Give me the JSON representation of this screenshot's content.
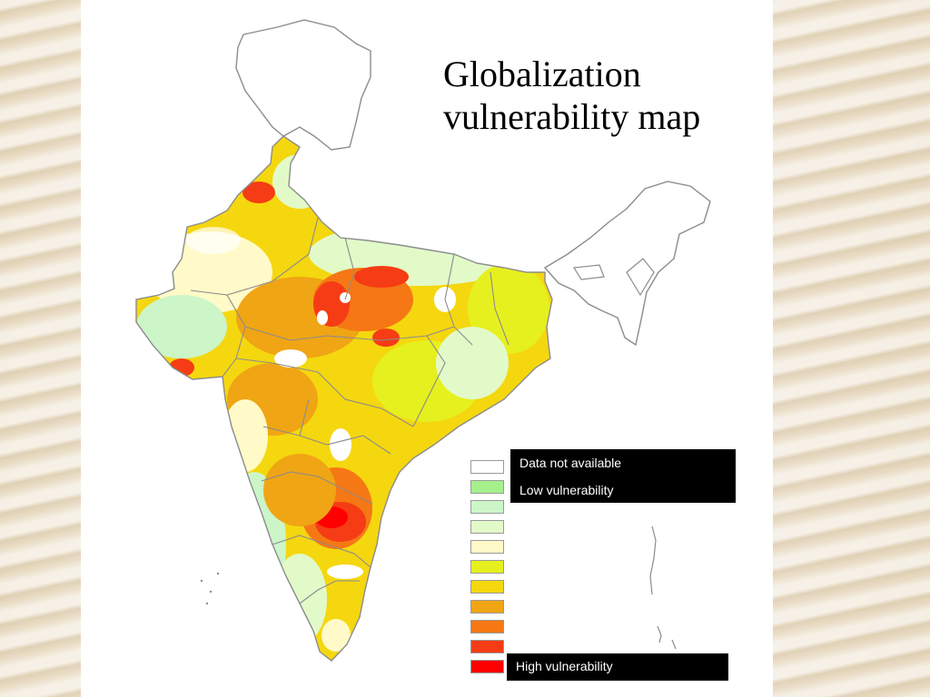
{
  "title_line1": "Globalization",
  "title_line2": "vulnerability map",
  "legend": {
    "labels": {
      "not_available": "Data not available",
      "low": "Low vulnerability",
      "high": "High vulnerability"
    },
    "swatch_colors": [
      "#ffffff",
      "#a6f08c",
      "#ccf5c8",
      "#e2fac8",
      "#fffac8",
      "#e6f01e",
      "#f5d70f",
      "#f0a514",
      "#f57814",
      "#f53c14",
      "#ff0000"
    ]
  },
  "colors": {
    "sand_background": "#efe6d6",
    "slide_background": "#ffffff",
    "boundary_stroke": "#8c8c8c"
  }
}
